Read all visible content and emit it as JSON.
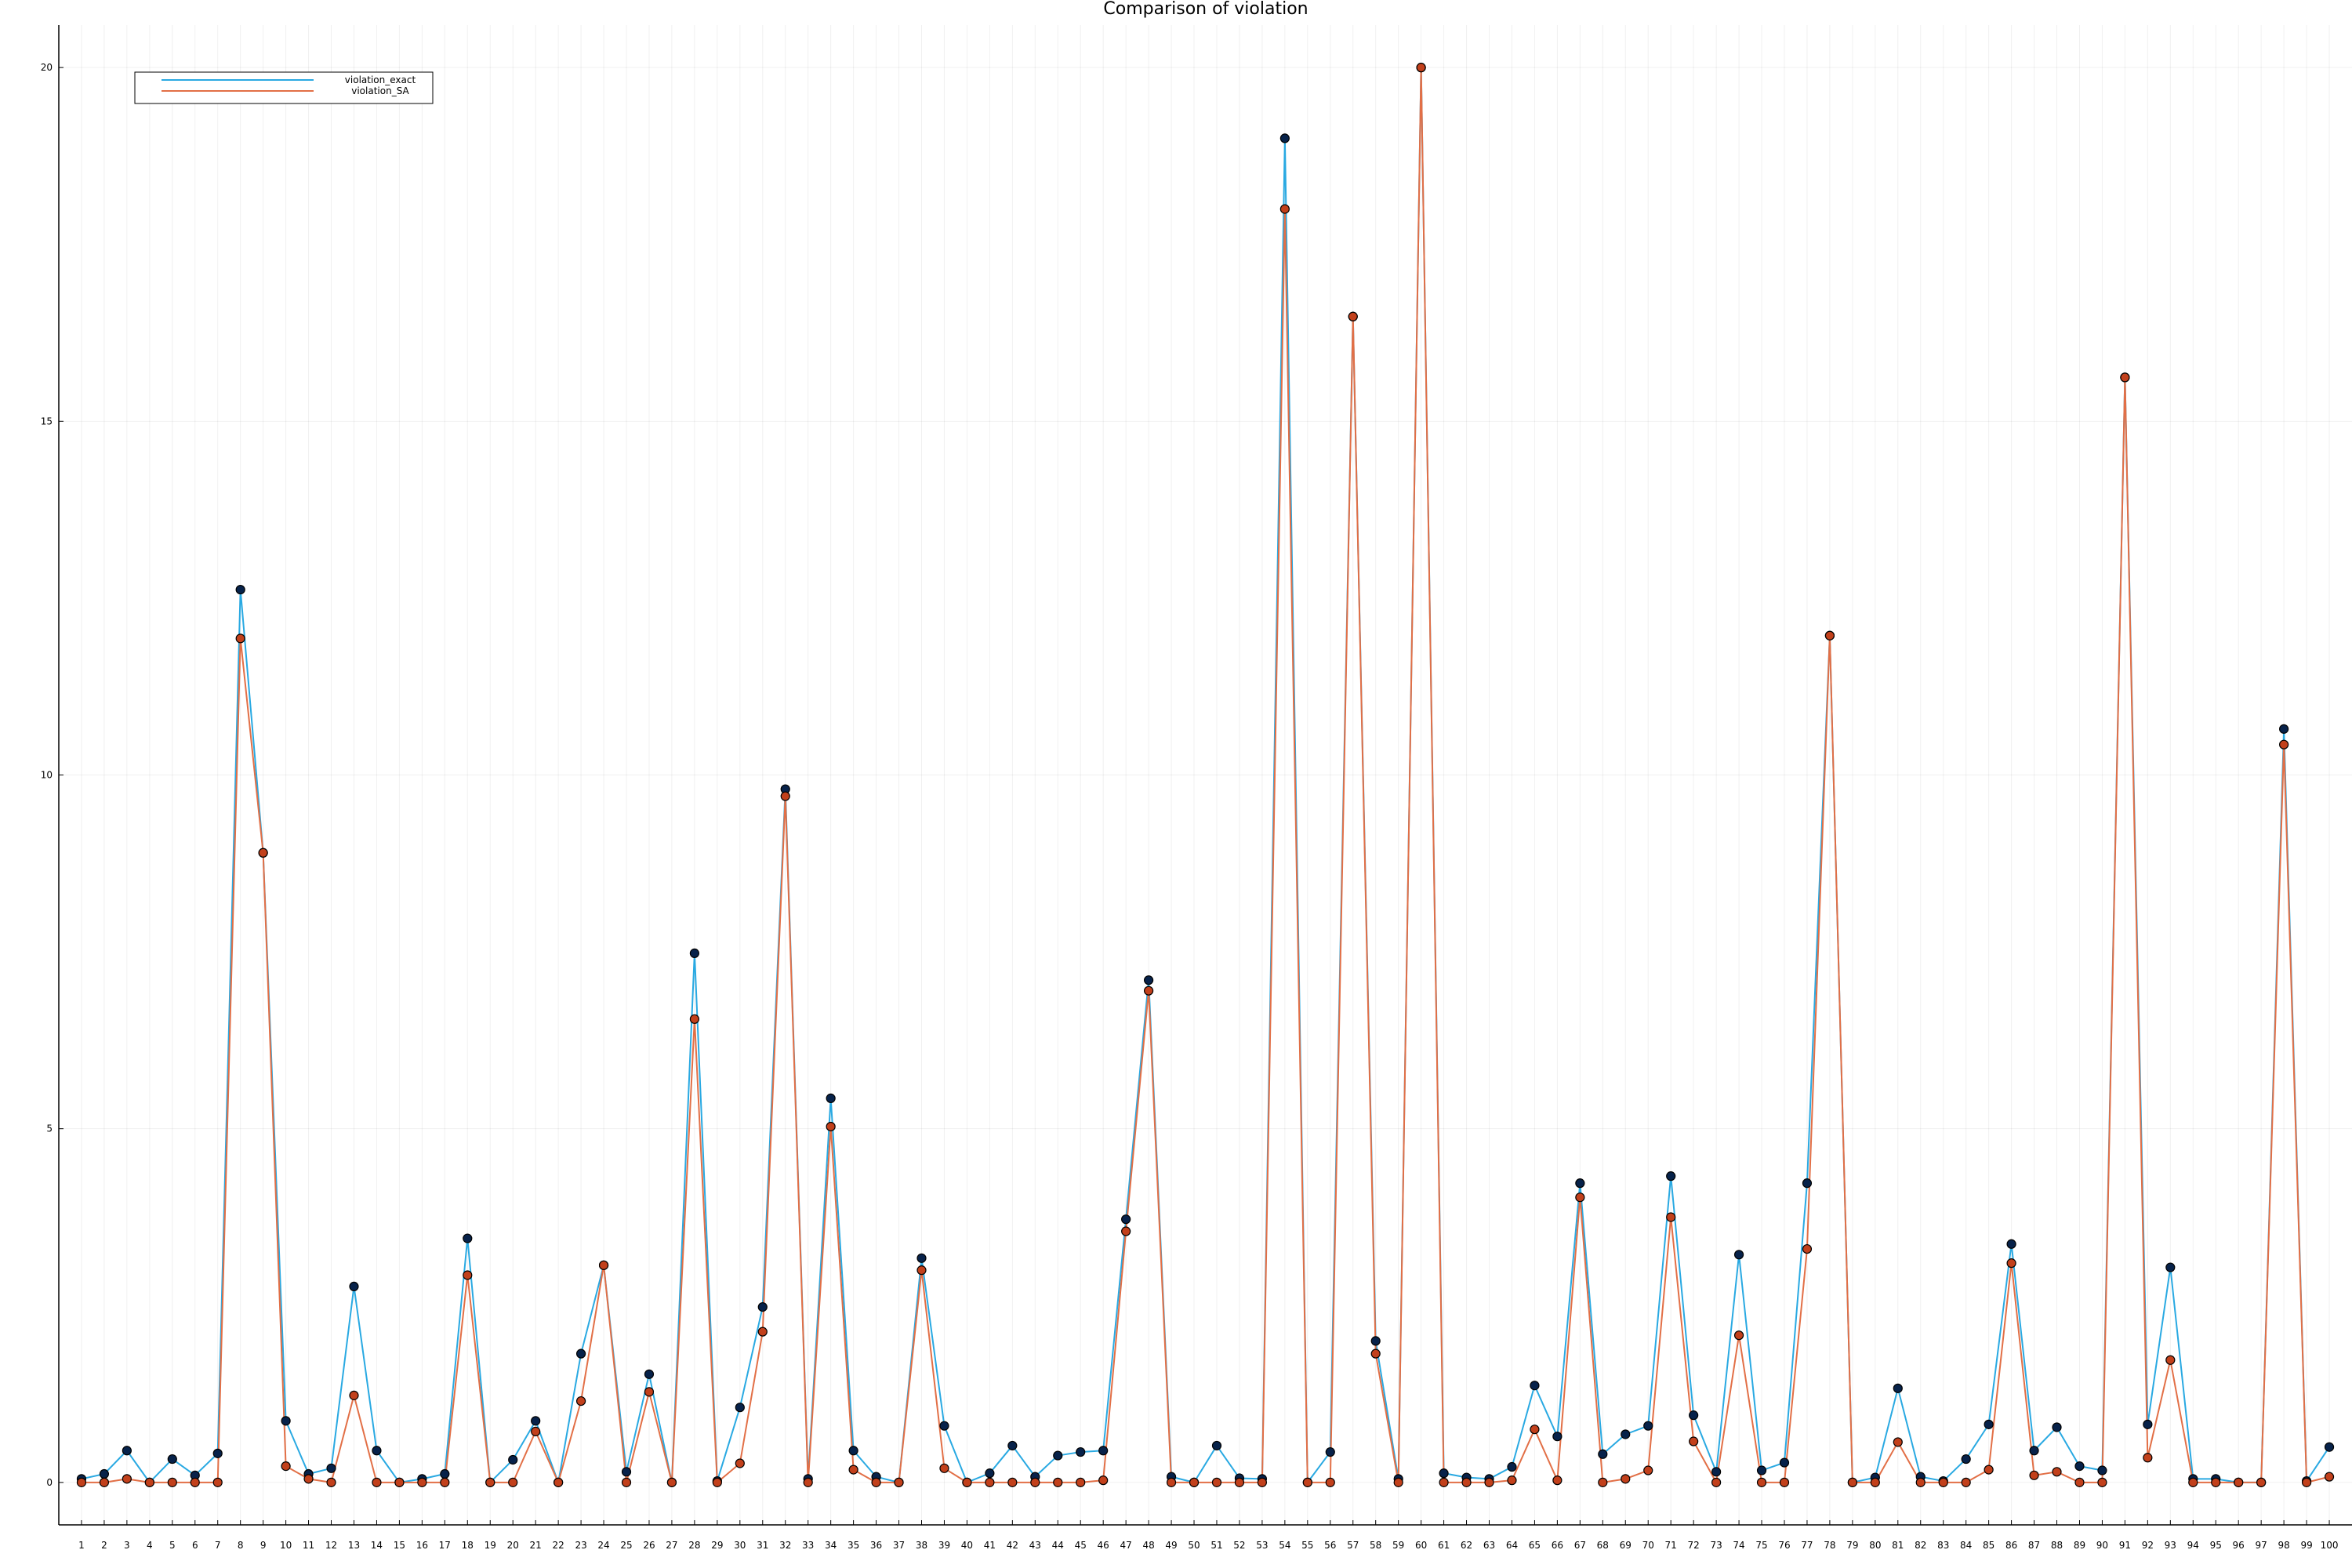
{
  "chart_data": {
    "type": "line",
    "title": "Comparison of violation",
    "xlabel": "",
    "ylabel": "",
    "xlim": [
      0,
      101
    ],
    "ylim": [
      -0.6,
      20.6
    ],
    "x_ticks": [
      1,
      2,
      3,
      4,
      5,
      6,
      7,
      8,
      9,
      10,
      11,
      12,
      13,
      14,
      15,
      16,
      17,
      18,
      19,
      20,
      21,
      22,
      23,
      24,
      25,
      26,
      27,
      28,
      29,
      30,
      31,
      32,
      33,
      34,
      35,
      36,
      37,
      38,
      39,
      40,
      41,
      42,
      43,
      44,
      45,
      46,
      47,
      48,
      49,
      50,
      51,
      52,
      53,
      54,
      55,
      56,
      57,
      58,
      59,
      60,
      61,
      62,
      63,
      64,
      65,
      66,
      67,
      68,
      69,
      70,
      71,
      72,
      73,
      74,
      75,
      76,
      77,
      78,
      79,
      80,
      81,
      82,
      83,
      84,
      85,
      86,
      87,
      88,
      89,
      90,
      91,
      92,
      93,
      94,
      95,
      96,
      97,
      98,
      99,
      100
    ],
    "y_ticks": [
      0,
      5,
      10,
      15,
      20
    ],
    "grid": true,
    "legend_position": "top-left",
    "x": [
      1,
      2,
      3,
      4,
      5,
      6,
      7,
      8,
      9,
      10,
      11,
      12,
      13,
      14,
      15,
      16,
      17,
      18,
      19,
      20,
      21,
      22,
      23,
      24,
      25,
      26,
      27,
      28,
      29,
      30,
      31,
      32,
      33,
      34,
      35,
      36,
      37,
      38,
      39,
      40,
      41,
      42,
      43,
      44,
      45,
      46,
      47,
      48,
      49,
      50,
      51,
      52,
      53,
      54,
      55,
      56,
      57,
      58,
      59,
      60,
      61,
      62,
      63,
      64,
      65,
      66,
      67,
      68,
      69,
      70,
      71,
      72,
      73,
      74,
      75,
      76,
      77,
      78,
      79,
      80,
      81,
      82,
      83,
      84,
      85,
      86,
      87,
      88,
      89,
      90,
      91,
      92,
      93,
      94,
      95,
      96,
      97,
      98,
      99,
      100
    ],
    "series": [
      {
        "name": "violation_exact",
        "color": "#29a9e2",
        "values": [
          0.05,
          0.12,
          0.45,
          0.0,
          0.33,
          0.1,
          0.41,
          12.62,
          8.9,
          0.87,
          0.12,
          0.2,
          2.77,
          0.45,
          0.0,
          0.05,
          0.12,
          3.45,
          0.0,
          0.32,
          0.87,
          0.0,
          1.82,
          3.07,
          0.15,
          1.53,
          0.0,
          7.48,
          0.02,
          1.06,
          2.48,
          9.8,
          0.05,
          5.43,
          0.45,
          0.08,
          0.0,
          3.17,
          0.8,
          0.0,
          0.13,
          0.52,
          0.08,
          0.38,
          0.43,
          0.45,
          3.72,
          7.1,
          0.08,
          0.0,
          0.52,
          0.06,
          0.05,
          19.0,
          0.0,
          0.43,
          16.48,
          2.0,
          0.05,
          20.0,
          0.13,
          0.07,
          0.05,
          0.22,
          1.37,
          0.65,
          4.23,
          0.4,
          0.68,
          0.8,
          4.33,
          0.95,
          0.15,
          3.22,
          0.17,
          0.28,
          4.23,
          11.97,
          0.0,
          0.07,
          1.33,
          0.08,
          0.02,
          0.33,
          0.82,
          3.37,
          0.45,
          0.78,
          0.23,
          0.17,
          15.62,
          0.82,
          3.04,
          0.05,
          0.05,
          0.0,
          0.0,
          10.65,
          0.02,
          0.5
        ]
      },
      {
        "name": "violation_SA",
        "color": "#e26f46",
        "values": [
          0.0,
          0.0,
          0.05,
          0.0,
          0.0,
          0.0,
          0.0,
          11.93,
          8.9,
          0.23,
          0.05,
          0.0,
          1.23,
          0.0,
          0.0,
          0.0,
          0.0,
          2.93,
          0.0,
          0.0,
          0.72,
          0.0,
          1.15,
          3.07,
          0.0,
          1.28,
          0.0,
          6.55,
          0.0,
          0.27,
          2.13,
          9.7,
          0.0,
          5.03,
          0.18,
          0.0,
          0.0,
          3.0,
          0.2,
          0.0,
          0.0,
          0.0,
          0.0,
          0.0,
          0.0,
          0.03,
          3.55,
          6.95,
          0.0,
          0.0,
          0.0,
          0.0,
          0.0,
          18.0,
          0.0,
          0.0,
          16.48,
          1.82,
          0.0,
          20.0,
          0.0,
          0.0,
          0.0,
          0.03,
          0.75,
          0.03,
          4.03,
          0.0,
          0.05,
          0.17,
          3.75,
          0.58,
          0.0,
          2.08,
          0.0,
          0.0,
          3.3,
          11.97,
          0.0,
          0.0,
          0.57,
          0.0,
          0.0,
          0.0,
          0.18,
          3.1,
          0.1,
          0.15,
          0.0,
          0.0,
          15.62,
          0.35,
          1.73,
          0.0,
          0.0,
          0.0,
          0.0,
          10.43,
          0.0,
          0.08
        ]
      }
    ]
  }
}
